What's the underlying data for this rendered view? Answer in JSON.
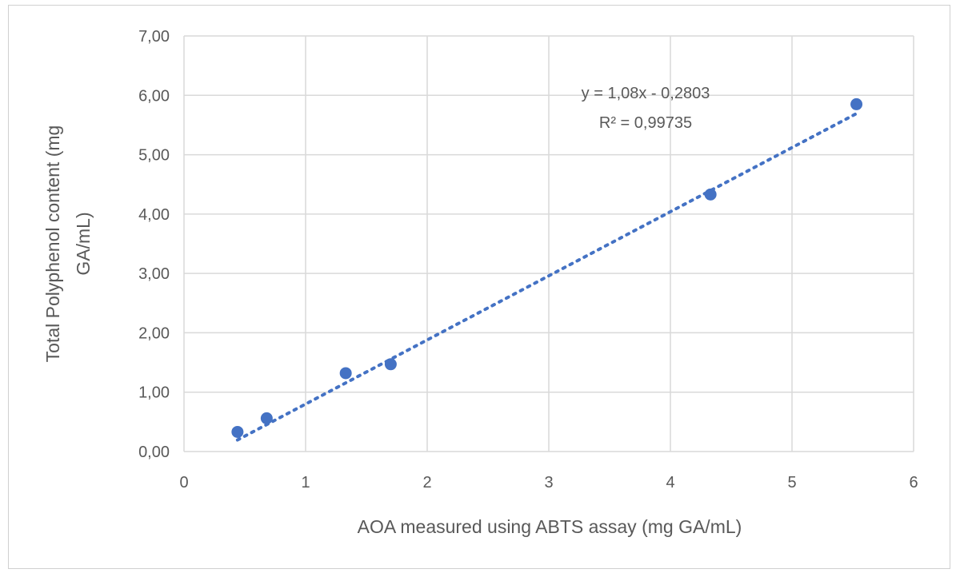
{
  "chart_data": {
    "type": "scatter",
    "title": "",
    "xlabel": "AOA measured using  ABTS  assay (mg GA/mL)",
    "ylabel_lines": [
      "Total Polyphenol  content (mg",
      "GA/mL)"
    ],
    "xlim": [
      0,
      6
    ],
    "ylim": [
      0,
      7
    ],
    "x_ticks": [
      0,
      1,
      2,
      3,
      4,
      5,
      6
    ],
    "x_tick_labels": [
      "0",
      "1",
      "2",
      "3",
      "4",
      "5",
      "6"
    ],
    "y_ticks": [
      0,
      1,
      2,
      3,
      4,
      5,
      6,
      7
    ],
    "y_tick_labels": [
      "0,00",
      "1,00",
      "2,00",
      "3,00",
      "4,00",
      "5,00",
      "6,00",
      "7,00"
    ],
    "grid": true,
    "series": [
      {
        "marker_color": "#4472C4",
        "points": [
          {
            "x": 0.44,
            "y": 0.33
          },
          {
            "x": 0.68,
            "y": 0.56
          },
          {
            "x": 1.33,
            "y": 1.32
          },
          {
            "x": 1.7,
            "y": 1.47
          },
          {
            "x": 4.33,
            "y": 4.33
          },
          {
            "x": 5.53,
            "y": 5.85
          }
        ]
      }
    ],
    "trendline": {
      "style": "dotted linear",
      "slope": 1.08,
      "intercept": -0.2803,
      "x_range": [
        0.44,
        5.53
      ],
      "equation_label": "y = 1,08x - 0,2803",
      "r2_label": "R² = 0,99735"
    }
  }
}
